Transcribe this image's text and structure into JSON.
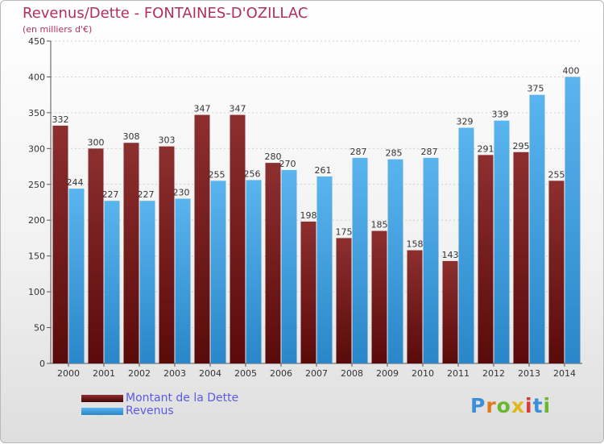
{
  "chart_data": {
    "type": "bar",
    "title": "Revenus/Dette - FONTAINES-D'OZILLAC",
    "subtitle": "(en milliers d'€)",
    "categories": [
      "2000",
      "2001",
      "2002",
      "2003",
      "2004",
      "2005",
      "2006",
      "2007",
      "2008",
      "2009",
      "2010",
      "2011",
      "2012",
      "2013",
      "2014"
    ],
    "series": [
      {
        "name": "Montant de la Dette",
        "color": "#7a1c1c",
        "values": [
          332,
          300,
          308,
          303,
          347,
          347,
          280,
          198,
          175,
          185,
          158,
          143,
          291,
          295,
          255
        ]
      },
      {
        "name": "Revenus",
        "color": "#3a9ee0",
        "values": [
          244,
          227,
          227,
          230,
          255,
          256,
          270,
          261,
          287,
          285,
          287,
          329,
          339,
          375,
          400
        ]
      }
    ],
    "ylim": [
      0,
      450
    ],
    "yticks": [
      0,
      50,
      100,
      150,
      200,
      250,
      300,
      350,
      400,
      450
    ],
    "grid": true,
    "legend": "bottom-left"
  },
  "logo": {
    "text": "Proxiti",
    "letter_colors": [
      "#3a8fd8",
      "#e07a1c",
      "#6ab82e",
      "#e0b81c",
      "#d83a3a",
      "#3a8fd8",
      "#6ab82e"
    ]
  }
}
